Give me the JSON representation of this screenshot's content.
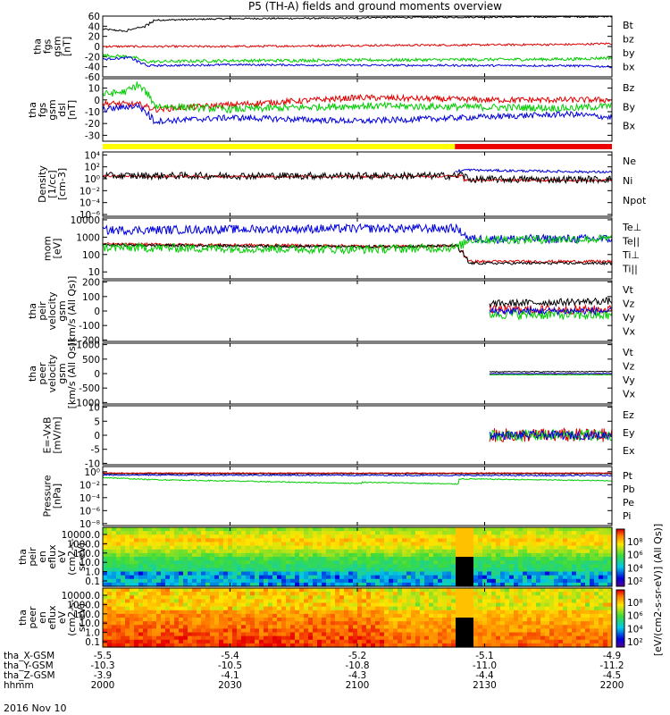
{
  "title": "P5 (TH-A) fields and ground moments overview",
  "date_label": "2016 Nov 10",
  "colors": {
    "black": "#000000",
    "red": "#e00000",
    "green": "#00cc00",
    "blue": "#0000dd",
    "yellow": "#ffff00",
    "bar_red": "#ee0000"
  },
  "chart_data": [
    {
      "id": "fgs_total",
      "type": "line",
      "ylabel": [
        "tha",
        "fgs",
        "gsm",
        "[nT]"
      ],
      "yticks": [
        60,
        40,
        20,
        0,
        -20,
        -40,
        -60
      ],
      "ylim": [
        -60,
        60
      ],
      "series": [
        {
          "name": "Bt",
          "color": "black",
          "points": [
            [
              2000,
              34
            ],
            [
              2005,
              30
            ],
            [
              2007,
              36
            ],
            [
              2009,
              38
            ],
            [
              2010,
              43
            ],
            [
              2012,
              52
            ],
            [
              2030,
              55
            ],
            [
              2060,
              56
            ],
            [
              2100,
              57
            ],
            [
              2130,
              58
            ],
            [
              2160,
              59
            ],
            [
              2200,
              58
            ]
          ],
          "noise": 1.5
        },
        {
          "name": "bz",
          "color": "red",
          "points": [
            [
              2000,
              0
            ],
            [
              2030,
              0
            ],
            [
              2100,
              2
            ],
            [
              2150,
              4
            ],
            [
              2200,
              6
            ]
          ],
          "noise": 2
        },
        {
          "name": "by",
          "color": "green",
          "points": [
            [
              2000,
              -18
            ],
            [
              2006,
              -20
            ],
            [
              2010,
              -30
            ],
            [
              2030,
              -28
            ],
            [
              2100,
              -27
            ],
            [
              2150,
              -25
            ],
            [
              2200,
              -22
            ]
          ],
          "noise": 3
        },
        {
          "name": "bx",
          "color": "blue",
          "points": [
            [
              2000,
              -25
            ],
            [
              2006,
              -22
            ],
            [
              2010,
              -38
            ],
            [
              2030,
              -36
            ],
            [
              2100,
              -37
            ],
            [
              2150,
              -38
            ],
            [
              2200,
              -40
            ]
          ],
          "noise": 2
        }
      ]
    },
    {
      "id": "fgs_components",
      "type": "line",
      "ylabel": [
        "tha",
        "fgs",
        "gsm",
        "dsl",
        "[nT]"
      ],
      "yticks": [
        10,
        0,
        -10,
        -20,
        -30
      ],
      "ylim": [
        -35,
        18
      ],
      "series": [
        {
          "name": "Bz",
          "color": "red",
          "points": [
            [
              2000,
              -3
            ],
            [
              2008,
              -4
            ],
            [
              2012,
              -8
            ],
            [
              2030,
              -4
            ],
            [
              2100,
              2
            ],
            [
              2130,
              0
            ],
            [
              2200,
              0
            ]
          ],
          "noise": 2.5
        },
        {
          "name": "By",
          "color": "green",
          "points": [
            [
              2000,
              5
            ],
            [
              2005,
              7
            ],
            [
              2008,
              13
            ],
            [
              2010,
              5
            ],
            [
              2012,
              -5
            ],
            [
              2030,
              -8
            ],
            [
              2100,
              -5
            ],
            [
              2150,
              -7
            ],
            [
              2200,
              -5
            ]
          ],
          "noise": 3
        },
        {
          "name": "Bx",
          "color": "blue",
          "points": [
            [
              2000,
              -8
            ],
            [
              2005,
              -6
            ],
            [
              2008,
              -5
            ],
            [
              2012,
              -18
            ],
            [
              2030,
              -15
            ],
            [
              2100,
              -18
            ],
            [
              2150,
              -12
            ],
            [
              2200,
              -15
            ]
          ],
          "noise": 2.5
        }
      ]
    },
    {
      "id": "density",
      "type": "line",
      "log": true,
      "ylabel": [
        "Density",
        "[1/cc]",
        "[cm-3]"
      ],
      "yticks": [
        4,
        2,
        0,
        -2,
        -4,
        -6
      ],
      "ytick_labels": [
        "10⁴",
        "10²",
        "10⁰",
        "10⁻²",
        "10⁻⁴",
        "10⁻⁶"
      ],
      "ylim": [
        -6.3,
        4.5
      ],
      "series": [
        {
          "name": "Ne",
          "color": "red",
          "points": [
            [
              2000,
              0.4
            ],
            [
              2123,
              0.4
            ],
            [
              2124,
              0.6
            ],
            [
              2125,
              -0.2
            ],
            [
              2200,
              -0.3
            ]
          ],
          "noise": 0.2
        },
        {
          "name": "Ni",
          "color": "black",
          "points": [
            [
              2000,
              0.5
            ],
            [
              2123,
              0.5
            ],
            [
              2124,
              0.8
            ],
            [
              2126,
              -0.1
            ],
            [
              2200,
              -0.1
            ]
          ],
          "noise": 0.6
        },
        {
          "name": "Npot",
          "color": "blue",
          "points": [
            [
              2123,
              1.2
            ],
            [
              2125,
              1.5
            ],
            [
              2130,
              1.4
            ],
            [
              2200,
              1.1
            ]
          ],
          "noise": 0.2
        }
      ]
    },
    {
      "id": "temperature",
      "type": "line",
      "log": true,
      "ylabel": [
        "mom",
        "[eV]"
      ],
      "yticks": [
        4,
        3,
        2,
        1
      ],
      "ytick_labels": [
        "10000",
        "1000",
        "100",
        "10"
      ],
      "ylim": [
        0.6,
        4.1
      ],
      "series": [
        {
          "name": "Te⊥",
          "color": "red",
          "points": [
            [
              2000,
              2.6
            ],
            [
              2060,
              2.5
            ],
            [
              2100,
              2.45
            ],
            [
              2123,
              2.5
            ],
            [
              2126,
              1.6
            ],
            [
              2200,
              1.6
            ]
          ],
          "noise": 0.08
        },
        {
          "name": "Te||",
          "color": "black",
          "points": [
            [
              2000,
              2.55
            ],
            [
              2060,
              2.45
            ],
            [
              2123,
              2.5
            ],
            [
              2126,
              1.5
            ],
            [
              2200,
              1.5
            ]
          ],
          "noise": 0.08
        },
        {
          "name": "Ti⊥",
          "color": "blue",
          "points": [
            [
              2000,
              3.4
            ],
            [
              2060,
              3.5
            ],
            [
              2123,
              3.5
            ],
            [
              2126,
              2.9
            ],
            [
              2200,
              2.9
            ]
          ],
          "noise": 0.25
        },
        {
          "name": "Ti||",
          "color": "green",
          "points": [
            [
              2000,
              2.4
            ],
            [
              2060,
              2.3
            ],
            [
              2123,
              2.4
            ],
            [
              2126,
              2.85
            ],
            [
              2200,
              2.9
            ]
          ],
          "noise": 0.25
        }
      ]
    },
    {
      "id": "ion_velocity",
      "type": "line",
      "ylabel": [
        "tha",
        "peir",
        "velocity",
        "gsm",
        "[km/s (All Qs)]"
      ],
      "yticks": [
        200,
        100,
        0,
        -100,
        -200
      ],
      "ylim": [
        -210,
        210
      ],
      "series": [
        {
          "name": "Vt",
          "color": "black",
          "points": [
            [
              2131,
              50
            ],
            [
              2160,
              70
            ],
            [
              2200,
              80
            ]
          ],
          "noise": 25
        },
        {
          "name": "Vz",
          "color": "red",
          "points": [
            [
              2131,
              10
            ],
            [
              2200,
              10
            ]
          ],
          "noise": 30
        },
        {
          "name": "Vy",
          "color": "green",
          "points": [
            [
              2131,
              -20
            ],
            [
              2200,
              -30
            ]
          ],
          "noise": 35
        },
        {
          "name": "Vx",
          "color": "blue",
          "points": [
            [
              2131,
              0
            ],
            [
              2200,
              0
            ]
          ],
          "noise": 25
        }
      ]
    },
    {
      "id": "electron_velocity",
      "type": "line",
      "ylabel": [
        "tha",
        "peer",
        "velocity",
        "gsm",
        "[km/s (All Qs)]"
      ],
      "yticks": [
        1000,
        500,
        0,
        -500,
        -1000
      ],
      "ylim": [
        -1050,
        1050
      ],
      "series": [
        {
          "name": "Vt",
          "color": "black",
          "points": [
            [
              2131,
              60
            ],
            [
              2200,
              70
            ]
          ],
          "noise": 15
        },
        {
          "name": "Vz",
          "color": "red",
          "points": [
            [
              2131,
              -10
            ],
            [
              2200,
              -10
            ]
          ],
          "noise": 10
        },
        {
          "name": "Vy",
          "color": "green",
          "points": [
            [
              2131,
              -40
            ],
            [
              2200,
              -40
            ]
          ],
          "noise": 10
        },
        {
          "name": "Vx",
          "color": "blue",
          "points": [
            [
              2131,
              0
            ],
            [
              2200,
              0
            ]
          ],
          "noise": 10
        }
      ]
    },
    {
      "id": "efield",
      "type": "line",
      "ylabel": [
        "E=-VxB",
        "[mV/m]"
      ],
      "yticks": [
        10,
        5,
        0,
        -5,
        -10
      ],
      "ylim": [
        -10.5,
        10.5
      ],
      "series": [
        {
          "name": "Ez",
          "color": "red",
          "points": [
            [
              2131,
              0
            ],
            [
              2200,
              0
            ]
          ],
          "noise": 2.5
        },
        {
          "name": "Ey",
          "color": "green",
          "points": [
            [
              2131,
              0
            ],
            [
              2200,
              0
            ]
          ],
          "noise": 2
        },
        {
          "name": "Ex",
          "color": "blue",
          "points": [
            [
              2131,
              0
            ],
            [
              2200,
              0
            ]
          ],
          "noise": 1.5
        }
      ]
    },
    {
      "id": "pressure",
      "type": "line",
      "log": true,
      "ylabel": [
        "Pressure",
        "[nPa]"
      ],
      "yticks": [
        0,
        -2,
        -4,
        -6,
        -8
      ],
      "ytick_labels": [
        "10⁰",
        "10⁻²",
        "10⁻⁴",
        "10⁻⁶",
        "10⁻⁸"
      ],
      "ylim": [
        -8.3,
        0.8
      ],
      "series": [
        {
          "name": "Pt",
          "color": "black",
          "points": [
            [
              2000,
              -0.3
            ],
            [
              2200,
              -0.3
            ]
          ],
          "noise": 0.05
        },
        {
          "name": "Pb",
          "color": "red",
          "points": [
            [
              2000,
              -0.2
            ],
            [
              2200,
              -0.2
            ]
          ],
          "noise": 0.05
        },
        {
          "name": "Pe",
          "color": "green",
          "points": [
            [
              2000,
              -0.9
            ],
            [
              2010,
              -1.2
            ],
            [
              2060,
              -1.8
            ],
            [
              2100,
              -1.6
            ],
            [
              2123,
              -1.9
            ],
            [
              2124,
              -1.1
            ],
            [
              2200,
              -1.4
            ]
          ],
          "noise": 0.08
        },
        {
          "name": "Pi",
          "color": "blue",
          "points": [
            [
              2000,
              -0.5
            ],
            [
              2200,
              -0.6
            ]
          ],
          "noise": 0.1
        }
      ]
    },
    {
      "id": "ion_spectrogram",
      "type": "heatmap",
      "ylabel": [
        "tha",
        "peir",
        "en",
        "eflux",
        "eV",
        "(cm2-s-",
        "sr-eV)"
      ],
      "yticks": [
        "10000.0",
        "1000.0",
        "100.0",
        "10.0",
        "1.0",
        "0.1"
      ]
    },
    {
      "id": "electron_spectrogram",
      "type": "heatmap",
      "ylabel": [
        "tha",
        "peer",
        "en",
        "eflux",
        "eV",
        "(cm2-s-",
        "sr-eV)"
      ],
      "yticks": [
        "10000.0",
        "1000.0",
        "100.0",
        "10.0",
        "1.0",
        "0.1"
      ]
    }
  ],
  "colorbar": {
    "ticks_top": [
      "10⁸",
      "10⁶",
      "10⁴",
      "10²"
    ],
    "ticks_bottom": [
      "10⁸",
      "10⁶",
      "10⁴",
      "10²"
    ],
    "label": "[eV/(cm2-s-sr-eV)] (All Qs)]"
  },
  "x_axis": {
    "time_ticks": [
      "2000",
      "2030",
      "2100",
      "2130",
      "2200"
    ],
    "rows": [
      {
        "label": "tha_X-GSM",
        "values": [
          "-5.5",
          "-5.4",
          "-5.2",
          "-5.1",
          "-4.9"
        ]
      },
      {
        "label": "tha_Y-GSM",
        "values": [
          "-10.3",
          "-10.5",
          "-10.8",
          "-11.0",
          "-11.2"
        ]
      },
      {
        "label": "tha_Z-GSM",
        "values": [
          "-3.9",
          "-4.1",
          "-4.3",
          "-4.4",
          "-4.5"
        ]
      },
      {
        "label": "hhmm",
        "values": [
          "2000",
          "2030",
          "2100",
          "2130",
          "2200"
        ]
      }
    ]
  }
}
